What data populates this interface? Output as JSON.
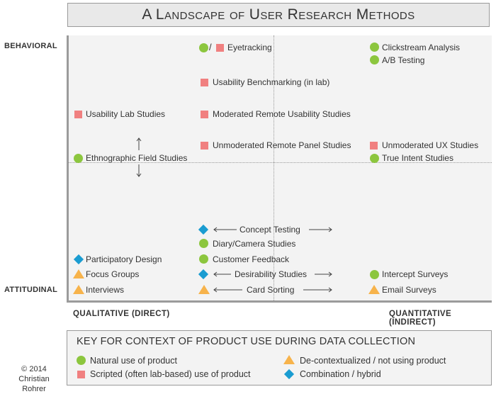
{
  "title": "A Landscape of User Research Methods",
  "axes": {
    "behavioral": "BEHAVIORAL",
    "attitudinal": "ATTITUDINAL",
    "qualitative": "QUALITATIVE (DIRECT)",
    "quantitative": "QUANTITATIVE (INDIRECT)"
  },
  "methods": {
    "eyetracking": "Eyetracking",
    "clickstream": "Clickstream Analysis",
    "ab_testing": "A/B Testing",
    "benchmarking": "Usability Benchmarking (in lab)",
    "lab_studies": "Usability Lab Studies",
    "moderated_remote": "Moderated Remote Usability Studies",
    "unmoderated_panel": "Unmoderated Remote Panel Studies",
    "unmoderated_ux": "Unmoderated UX Studies",
    "ethnographic": "Ethnographic Field Studies",
    "true_intent": "True Intent Studies",
    "concept_testing": "Concept Testing",
    "diary": "Diary/Camera Studies",
    "participatory": "Participatory Design",
    "customer_feedback": "Customer Feedback",
    "focus_groups": "Focus Groups",
    "desirability": "Desirability Studies",
    "intercept": "Intercept Surveys",
    "interviews": "Interviews",
    "card_sorting": "Card Sorting",
    "email_surveys": "Email Surveys"
  },
  "key": {
    "title": "KEY FOR CONTEXT OF PRODUCT USE DURING DATA COLLECTION",
    "natural": "Natural use of product",
    "scripted": "Scripted (often lab-based) use of product",
    "decontextualized": "De-contextualized / not using product",
    "combination": "Combination / hybrid"
  },
  "copyright": {
    "line1": "© 2014",
    "line2": "Christian Rohrer"
  },
  "colors": {
    "natural": "#8cc63e",
    "scripted": "#f08080",
    "decontextualized": "#f7b34b",
    "combination": "#1a9cd1"
  },
  "icons": {
    "natural": "green-circle",
    "scripted": "red-square",
    "decontextualized": "orange-triangle",
    "combination": "blue-diamond"
  }
}
